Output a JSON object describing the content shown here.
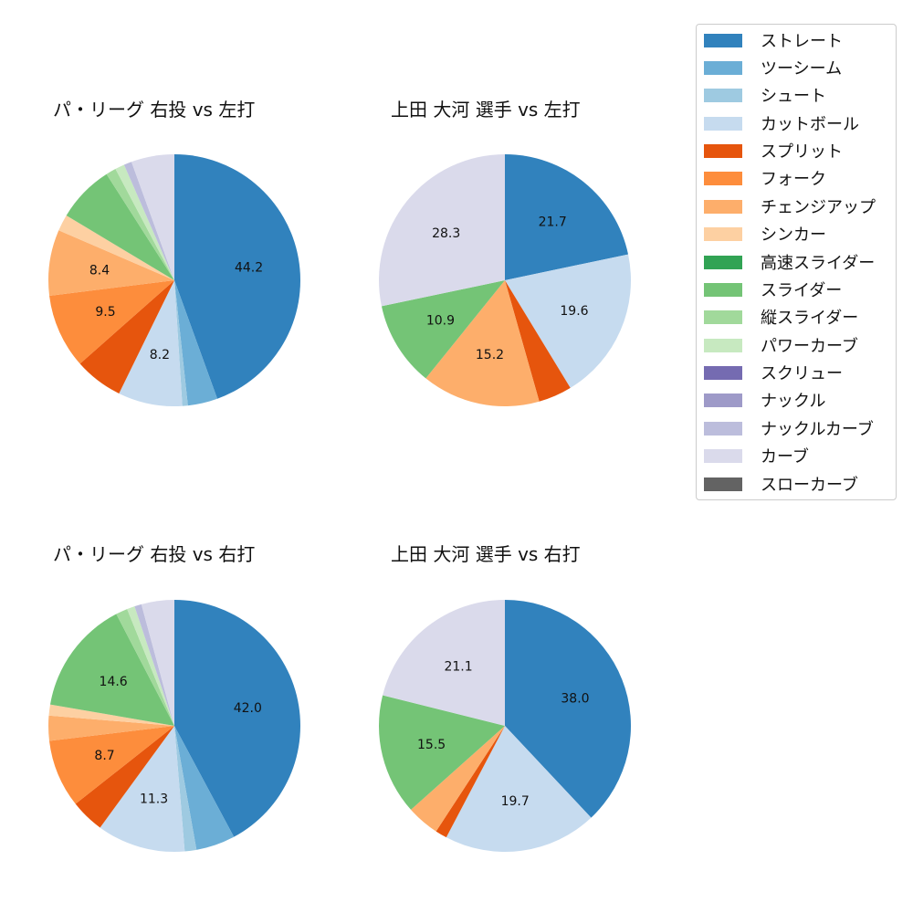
{
  "legend": {
    "items": [
      {
        "label": "ストレート",
        "color": "#3182bd"
      },
      {
        "label": "ツーシーム",
        "color": "#6baed6"
      },
      {
        "label": "シュート",
        "color": "#9ecae1"
      },
      {
        "label": "カットボール",
        "color": "#c6dbef"
      },
      {
        "label": "スプリット",
        "color": "#e6550d"
      },
      {
        "label": "フォーク",
        "color": "#fd8d3c"
      },
      {
        "label": "チェンジアップ",
        "color": "#fdae6b"
      },
      {
        "label": "シンカー",
        "color": "#fdd0a2"
      },
      {
        "label": "高速スライダー",
        "color": "#31a354"
      },
      {
        "label": "スライダー",
        "color": "#74c476"
      },
      {
        "label": "縦スライダー",
        "color": "#a1d99b"
      },
      {
        "label": "パワーカーブ",
        "color": "#c7e9c0"
      },
      {
        "label": "スクリュー",
        "color": "#756bb1"
      },
      {
        "label": "ナックル",
        "color": "#9e9ac8"
      },
      {
        "label": "ナックルカーブ",
        "color": "#bcbddc"
      },
      {
        "label": "カーブ",
        "color": "#dadaeb"
      },
      {
        "label": "スローカーブ",
        "color": "#636363"
      }
    ]
  },
  "chart_data": [
    {
      "type": "pie",
      "title": "パ・リーグ 右投 vs 左打",
      "labels": [
        "ストレート",
        "ツーシーム",
        "シュート",
        "カットボール",
        "スプリット",
        "フォーク",
        "チェンジアップ",
        "シンカー",
        "スライダー",
        "縦スライダー",
        "パワーカーブ",
        "ナックルカーブ",
        "カーブ"
      ],
      "values": [
        44.2,
        3.8,
        0.7,
        8.2,
        6.2,
        9.5,
        8.4,
        2.1,
        7.3,
        1.3,
        1.2,
        1.0,
        5.5
      ],
      "shown_labels": [
        "44.2",
        "",
        "",
        "8.2",
        "",
        "9.5",
        "8.4",
        "",
        "",
        "",
        "",
        "",
        ""
      ],
      "start_angle": 90,
      "direction": "clockwise"
    },
    {
      "type": "pie",
      "title": "上田 大河 選手 vs 左打",
      "labels": [
        "ストレート",
        "カットボール",
        "スプリット",
        "チェンジアップ",
        "スライダー",
        "カーブ"
      ],
      "values": [
        21.7,
        19.6,
        4.3,
        15.2,
        10.9,
        28.3
      ],
      "shown_labels": [
        "21.7",
        "19.6",
        "",
        "15.2",
        "10.9",
        "28.3"
      ],
      "start_angle": 90,
      "direction": "clockwise"
    },
    {
      "type": "pie",
      "title": "パ・リーグ 右投 vs 右打",
      "labels": [
        "ストレート",
        "ツーシーム",
        "シュート",
        "カットボール",
        "スプリット",
        "フォーク",
        "チェンジアップ",
        "シンカー",
        "スライダー",
        "縦スライダー",
        "パワーカーブ",
        "ナックルカーブ",
        "カーブ"
      ],
      "values": [
        42.0,
        5.0,
        1.5,
        11.3,
        4.3,
        8.7,
        3.2,
        1.4,
        14.6,
        1.5,
        1.0,
        0.9,
        4.2
      ],
      "shown_labels": [
        "42.0",
        "",
        "",
        "11.3",
        "",
        "8.7",
        "",
        "",
        "14.6",
        "",
        "",
        "",
        ""
      ],
      "start_angle": 90,
      "direction": "clockwise"
    },
    {
      "type": "pie",
      "title": "上田 大河 選手 vs 右打",
      "labels": [
        "ストレート",
        "カットボール",
        "スプリット",
        "チェンジアップ",
        "スライダー",
        "カーブ"
      ],
      "values": [
        38.0,
        19.7,
        1.5,
        4.2,
        15.5,
        21.1
      ],
      "shown_labels": [
        "38.0",
        "19.7",
        "",
        "",
        "15.5",
        "21.1"
      ],
      "start_angle": 90,
      "direction": "clockwise"
    }
  ],
  "colors": {
    "ストレート": "#3182bd",
    "ツーシーム": "#6baed6",
    "シュート": "#9ecae1",
    "カットボール": "#c6dbef",
    "スプリット": "#e6550d",
    "フォーク": "#fd8d3c",
    "チェンジアップ": "#fdae6b",
    "シンカー": "#fdd0a2",
    "高速スライダー": "#31a354",
    "スライダー": "#74c476",
    "縦スライダー": "#a1d99b",
    "パワーカーブ": "#c7e9c0",
    "スクリュー": "#756bb1",
    "ナックル": "#9e9ac8",
    "ナックルカーブ": "#bcbddc",
    "カーブ": "#dadaeb",
    "スローカーブ": "#636363"
  }
}
